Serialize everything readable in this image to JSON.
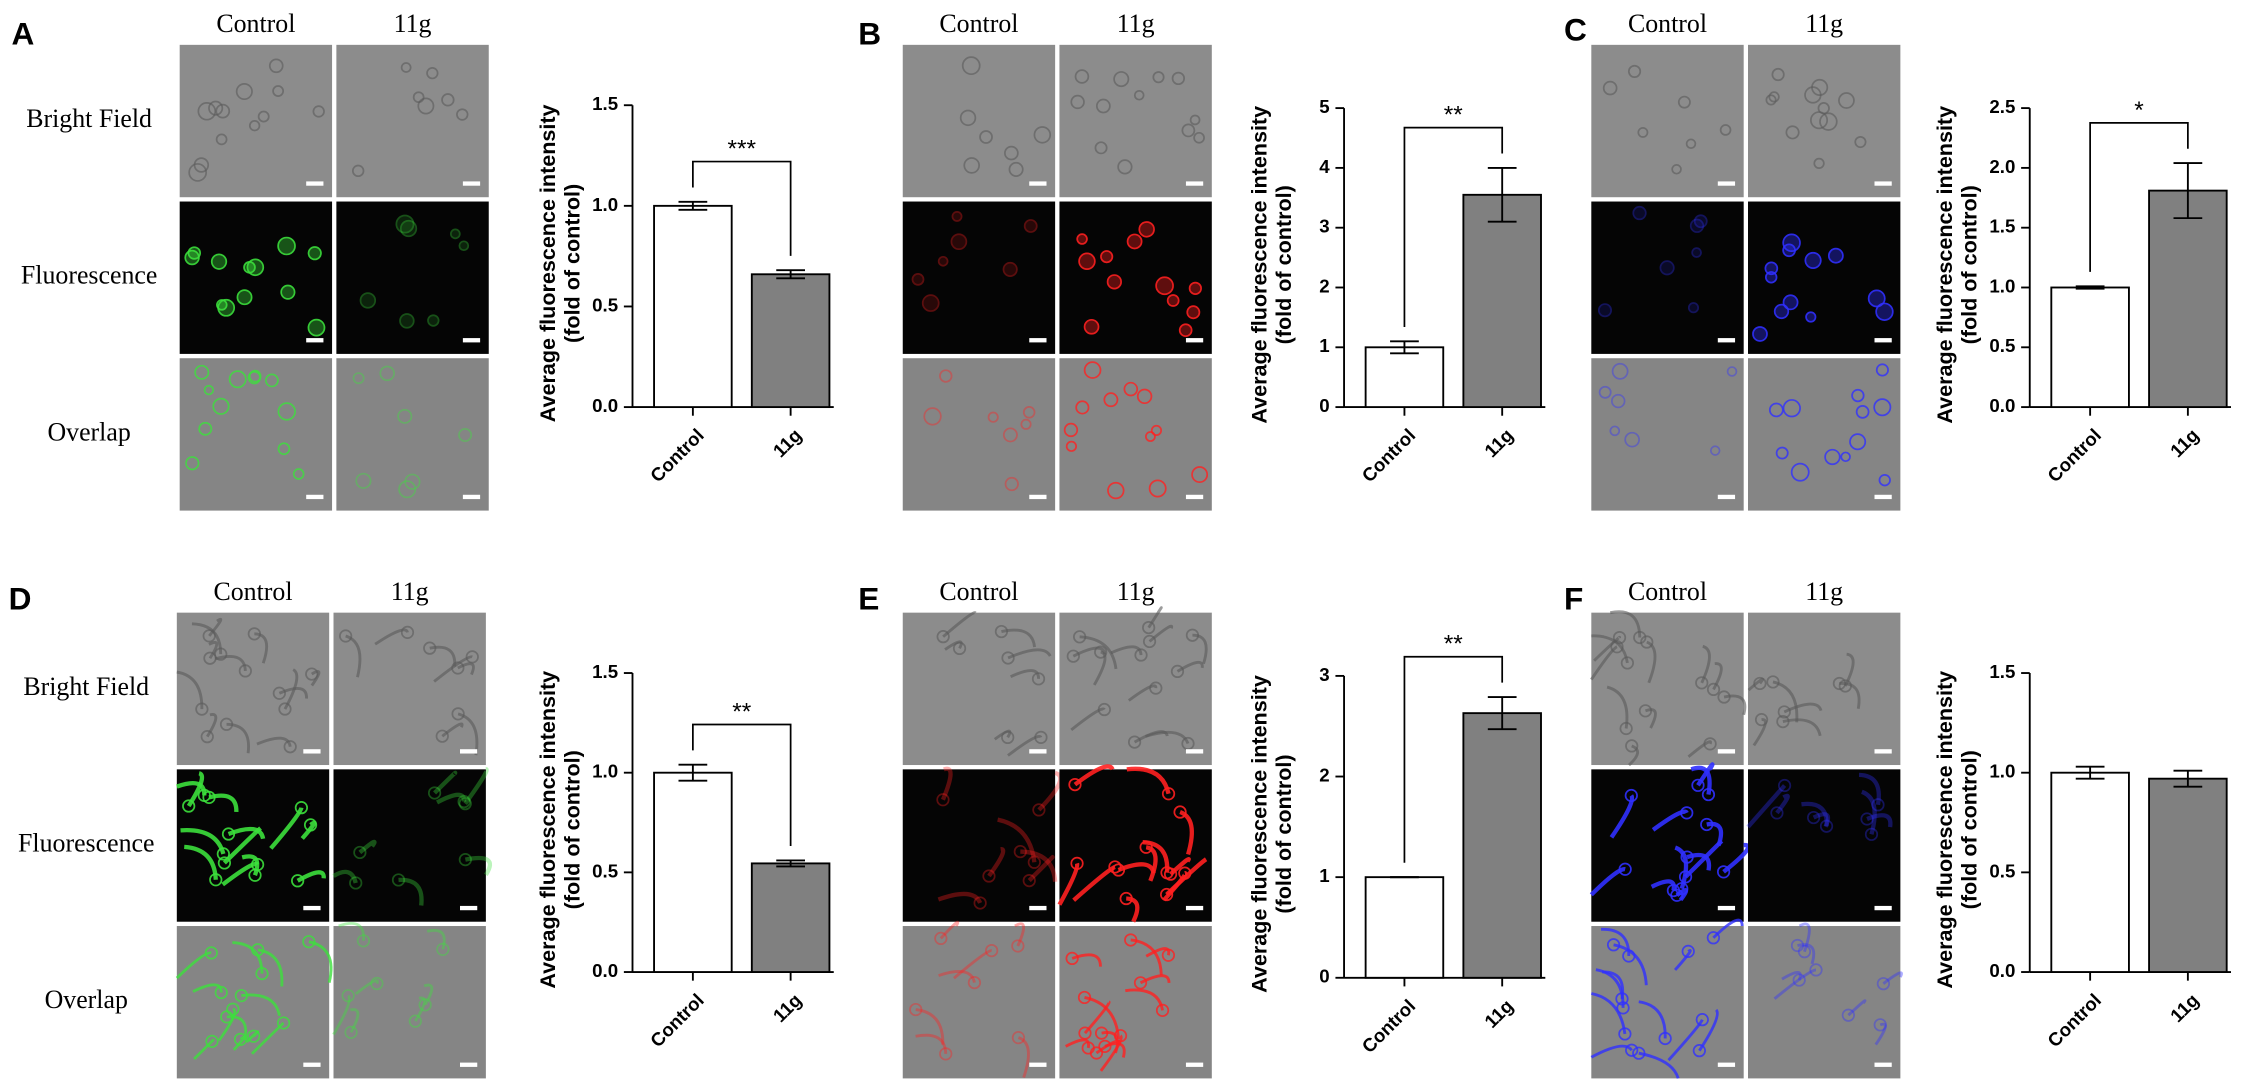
{
  "chart_data": [
    {
      "type": "bar",
      "panel": "A",
      "image_columns": [
        "Control",
        "11g"
      ],
      "image_rows": [
        "Bright Field",
        "Fluorescence",
        "Overlap"
      ],
      "y_label": [
        "Average fluorescence intensity",
        "(fold of control)"
      ],
      "categories": [
        "Control",
        "11g"
      ],
      "values": [
        1.0,
        0.66
      ],
      "errors": [
        0.02,
        0.02
      ],
      "colors": [
        "#ffffff",
        "#808080"
      ],
      "annotation": "***",
      "ylim": [
        0,
        1.5
      ],
      "yticks": [
        {
          "value": 0,
          "label": "0.0"
        },
        0.5,
        {
          "value": 1,
          "label": "1.0"
        },
        1.5
      ]
    },
    {
      "type": "bar",
      "panel": "B",
      "image_columns": [
        "Control",
        "11g"
      ],
      "y_label": [
        "Average fluorescence intensity",
        "(fold of control)"
      ],
      "categories": [
        "Control",
        "11g"
      ],
      "values": [
        1.0,
        3.55
      ],
      "errors": [
        0.1,
        0.45
      ],
      "colors": [
        "#ffffff",
        "#808080"
      ],
      "annotation": "**",
      "ylim": [
        0,
        5
      ],
      "yticks": [
        0,
        1,
        2,
        3,
        4,
        5
      ]
    },
    {
      "type": "bar",
      "panel": "C",
      "image_columns": [
        "Control",
        "11g"
      ],
      "y_label": [
        "Average fluorescence intensity",
        "(fold of control)"
      ],
      "categories": [
        "Control",
        "11g"
      ],
      "values": [
        1.0,
        1.81
      ],
      "errors": [
        0.01,
        0.23
      ],
      "colors": [
        "#ffffff",
        "#808080"
      ],
      "annotation": "*",
      "ylim": [
        0,
        2.5
      ],
      "yticks": [
        {
          "value": 0,
          "label": "0.0"
        },
        0.5,
        {
          "value": 1,
          "label": "1.0"
        },
        1.5,
        {
          "value": 2,
          "label": "2.0"
        },
        2.5
      ]
    },
    {
      "type": "bar",
      "panel": "D",
      "image_columns": [
        "Control",
        "11g"
      ],
      "image_rows": [
        "Bright Field",
        "Fluorescence",
        "Overlap"
      ],
      "y_label": [
        "Average fluorescence intensity",
        "(fold of control)"
      ],
      "categories": [
        "Control",
        "11g"
      ],
      "values": [
        1.0,
        0.545
      ],
      "errors": [
        0.04,
        0.015
      ],
      "colors": [
        "#ffffff",
        "#808080"
      ],
      "annotation": "**",
      "ylim": [
        0,
        1.5
      ],
      "yticks": [
        {
          "value": 0,
          "label": "0.0"
        },
        0.5,
        {
          "value": 1,
          "label": "1.0"
        },
        1.5
      ]
    },
    {
      "type": "bar",
      "panel": "E",
      "image_columns": [
        "Control",
        "11g"
      ],
      "y_label": [
        "Average fluorescence intensity",
        "(fold of control)"
      ],
      "categories": [
        "Control",
        "11g"
      ],
      "values": [
        1.0,
        2.63
      ],
      "errors": [
        0,
        0.16
      ],
      "colors": [
        "#ffffff",
        "#808080"
      ],
      "annotation": "**",
      "ylim": [
        0,
        3
      ],
      "yticks": [
        0,
        1,
        2,
        3
      ]
    },
    {
      "type": "bar",
      "panel": "F",
      "image_columns": [
        "Control",
        "11g"
      ],
      "y_label": [
        "Average fluorescence intensity",
        "(fold of control)"
      ],
      "categories": [
        "Control",
        "11g"
      ],
      "values": [
        1.0,
        0.97
      ],
      "errors": [
        0.03,
        0.04
      ],
      "colors": [
        "#ffffff",
        "#808080"
      ],
      "ylim": [
        0,
        1.5
      ],
      "yticks": [
        {
          "value": 0,
          "label": "0.0"
        },
        0.5,
        {
          "value": 1,
          "label": "1.0"
        },
        1.5
      ]
    }
  ]
}
